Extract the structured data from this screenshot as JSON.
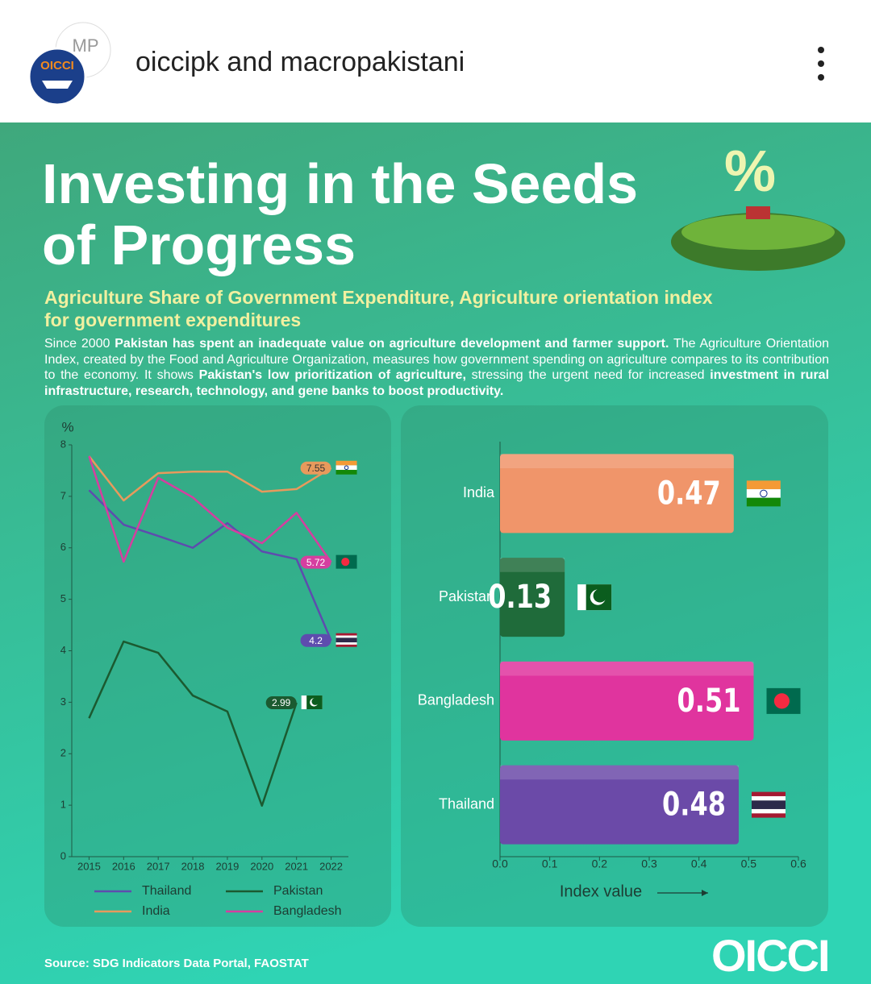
{
  "header": {
    "account": "oiccipk and macropakistani",
    "avatar_1": "OICCI",
    "avatar_2": "MP"
  },
  "title": "Investing in the Seeds of Progress",
  "subtitle": "Agriculture Share of Government Expenditure, Agriculture orientation index for government expenditures",
  "description": [
    {
      "text": "Since 2000 ",
      "bold": false
    },
    {
      "text": "Pakistan has spent an inadequate value on agriculture development and farmer support.",
      "bold": true
    },
    {
      "text": " The Agriculture Orientation Index, created by the Food and Agriculture Organization, measures how government spending on agriculture compares to its contribution to the economy. It shows ",
      "bold": false
    },
    {
      "text": "Pakistan's low prioritization of agriculture,",
      "bold": true
    },
    {
      "text": " stressing the urgent need for increased ",
      "bold": false
    },
    {
      "text": "investment in rural infrastructure, research, technology, and gene banks to boost productivity.",
      "bold": true
    }
  ],
  "source": "Source: SDG Indicators Data Portal, FAOSTAT",
  "logo": "OICCI",
  "chart_data": [
    {
      "type": "line",
      "y_label": "%",
      "categories": [
        "2015",
        "2016",
        "2017",
        "2018",
        "2019",
        "2020",
        "2021",
        "2022"
      ],
      "ylim": [
        0,
        8
      ],
      "yticks": [
        0,
        1,
        2,
        3,
        4,
        5,
        6,
        7,
        8
      ],
      "series": [
        {
          "name": "Thailand",
          "color": "#5e4cae",
          "values": [
            7.12,
            6.45,
            6.23,
            6.0,
            6.48,
            5.93,
            5.78,
            4.2
          ]
        },
        {
          "name": "Pakistan",
          "color": "#1b5a30",
          "values": [
            2.69,
            4.18,
            3.96,
            3.13,
            2.82,
            0.99,
            2.99,
            null
          ]
        },
        {
          "name": "India",
          "color": "#e89a5c",
          "values": [
            7.78,
            6.92,
            7.45,
            7.48,
            7.48,
            7.09,
            7.14,
            7.55
          ]
        },
        {
          "name": "Bangladesh",
          "color": "#d63ea0",
          "values": [
            7.78,
            5.73,
            7.36,
            6.98,
            6.39,
            6.09,
            6.68,
            5.72
          ]
        }
      ]
    },
    {
      "type": "bar",
      "x_label": "Index value",
      "categories": [
        "India",
        "Pakistan",
        "Bangladesh",
        "Thailand"
      ],
      "values": [
        0.47,
        0.13,
        0.51,
        0.48
      ],
      "colors": [
        "#f0956a",
        "#1f6b3a",
        "#e0349e",
        "#6b4aa8"
      ],
      "xlim": [
        0,
        0.6
      ],
      "xticks": [
        {
          "value": 0,
          "label": "0.0"
        },
        0.1,
        0.2,
        0.3,
        0.4,
        0.5,
        0.6
      ]
    }
  ]
}
